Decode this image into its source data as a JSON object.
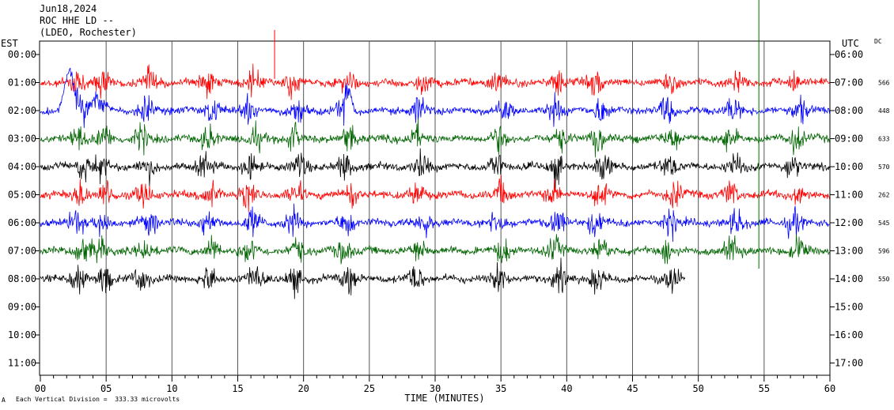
{
  "header": {
    "date": "Jun18,2024",
    "station": "ROC HHE LD --",
    "network": "(LDEO, Rochester)"
  },
  "left_tz_label": "EST",
  "right_tz_label": "UTC",
  "dc_label": "DC",
  "footer": {
    "scale_text": "Each Vertical Division =  333.33 microvolts",
    "corner_mark": "A"
  },
  "colors": {
    "red": "#ff0000",
    "blue": "#0000ff",
    "green": "#006400",
    "black": "#000000",
    "grid": "#000000"
  },
  "chart_data": {
    "type": "line",
    "title": "",
    "xlabel": "TIME (MINUTES)",
    "ylabel": "",
    "xlim": [
      0,
      60
    ],
    "x_ticks": [
      "00",
      "05",
      "10",
      "15",
      "20",
      "25",
      "30",
      "35",
      "40",
      "45",
      "50",
      "55",
      "60"
    ],
    "rows_est": [
      "00:00",
      "01:00",
      "02:00",
      "03:00",
      "04:00",
      "05:00",
      "06:00",
      "07:00",
      "08:00",
      "09:00",
      "10:00",
      "11:00"
    ],
    "rows_utc": [
      "06:00",
      "07:00",
      "08:00",
      "09:00",
      "10:00",
      "11:00",
      "12:00",
      "13:00",
      "14:00",
      "15:00",
      "16:00",
      "17:00"
    ],
    "series": [
      {
        "row": 1,
        "color": "red",
        "dc": "566",
        "end_minute": 60
      },
      {
        "row": 2,
        "color": "blue",
        "dc": "448",
        "end_minute": 60
      },
      {
        "row": 3,
        "color": "green",
        "dc": "633",
        "end_minute": 60
      },
      {
        "row": 4,
        "color": "black",
        "dc": "570",
        "end_minute": 60
      },
      {
        "row": 5,
        "color": "red",
        "dc": "262",
        "end_minute": 60
      },
      {
        "row": 6,
        "color": "blue",
        "dc": "545",
        "end_minute": 60
      },
      {
        "row": 7,
        "color": "green",
        "dc": "596",
        "end_minute": 60
      },
      {
        "row": 8,
        "color": "black",
        "dc": "550",
        "end_minute": 49
      }
    ]
  }
}
